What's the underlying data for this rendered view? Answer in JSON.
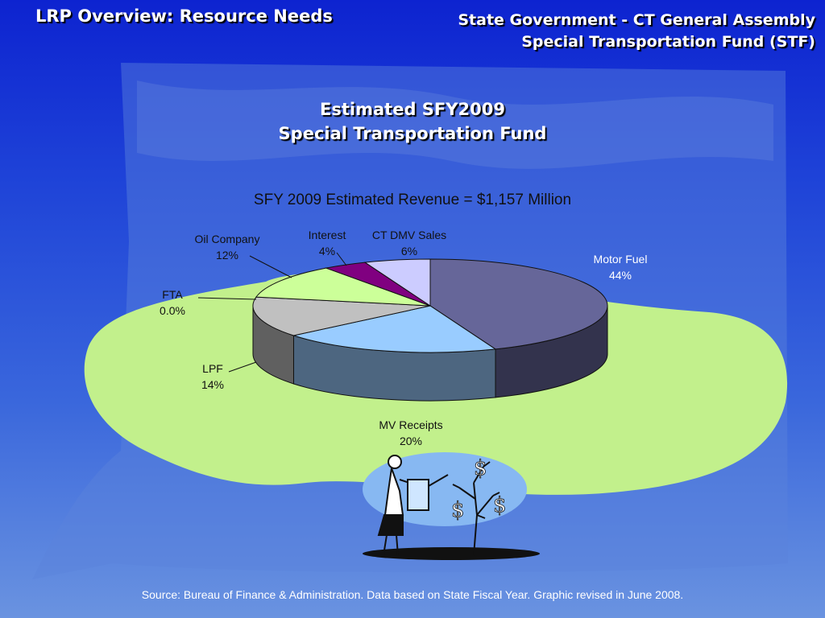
{
  "header": {
    "left_title": "LRP Overview: Resource Needs",
    "right_line1": "State Government - CT General Assembly",
    "right_line2": "Special Transportation Fund (STF)"
  },
  "chart_data": {
    "type": "pie",
    "title_line1": "Estimated SFY2009",
    "title_line2": "Special Transportation Fund",
    "subtitle": "SFY 2009 Estimated Revenue = $1,157 Million",
    "series": [
      {
        "name": "Motor Fuel",
        "label": "44%",
        "value": 44,
        "color": "#666699"
      },
      {
        "name": "MV Receipts",
        "label": "20%",
        "value": 20,
        "color": "#99ccff"
      },
      {
        "name": "LPF",
        "label": "14%",
        "value": 14,
        "color": "#c0c0c0"
      },
      {
        "name": "FTA",
        "label": "0.0%",
        "value": 0,
        "color": "#cccccc"
      },
      {
        "name": "Oil Company",
        "label": "12%",
        "value": 12,
        "color": "#ccff99"
      },
      {
        "name": "Interest",
        "label": "4%",
        "value": 4,
        "color": "#800080"
      },
      {
        "name": "CT DMV Sales",
        "label": "6%",
        "value": 6,
        "color": "#ccccff"
      }
    ]
  },
  "footer": {
    "source": "Source: Bureau of Finance & Administration. Data based on State Fiscal Year. Graphic revised in June 2008."
  },
  "illustration": {
    "icon": "woman-watering-money-tree-icon",
    "glyph": "$"
  },
  "colors": {
    "background_top": "#0d23d0",
    "background_bottom": "#6a93e0",
    "highlight_blob": "#c2f08c",
    "ellipse": "#87b8f2"
  }
}
